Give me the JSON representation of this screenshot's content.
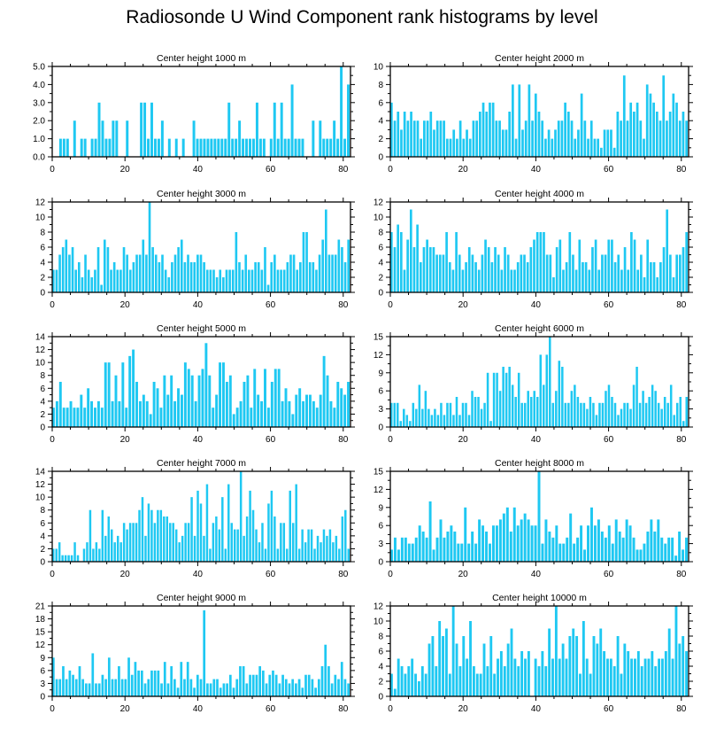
{
  "title": "Radiosonde U Wind Component rank histograms by level",
  "colors": {
    "bar": "#1EC8F2",
    "axis": "#000000"
  },
  "chart_data": [
    {
      "type": "bar",
      "title": "Center height 1000 m",
      "xlim": [
        0,
        82
      ],
      "ylim": [
        0,
        5
      ],
      "xticks": [
        0,
        20,
        40,
        60,
        80
      ],
      "yticks": [
        0,
        1,
        2,
        3,
        4,
        5
      ],
      "ytick_labels": [
        "0.0",
        "1.0",
        "2.0",
        "3.0",
        "4.0",
        "5.0"
      ],
      "values": [
        0,
        0,
        1,
        1,
        1,
        0,
        2,
        0,
        1,
        1,
        0,
        1,
        1,
        3,
        2,
        1,
        1,
        2,
        2,
        0,
        0,
        2,
        0,
        0,
        0,
        3,
        3,
        1,
        3,
        1,
        1,
        2,
        0,
        1,
        0,
        1,
        0,
        1,
        0,
        0,
        2,
        1,
        1,
        1,
        1,
        1,
        1,
        1,
        1,
        1,
        3,
        1,
        1,
        2,
        1,
        1,
        1,
        1,
        3,
        1,
        1,
        0,
        1,
        3,
        1,
        3,
        1,
        1,
        4,
        1,
        1,
        1,
        0,
        0,
        2,
        0,
        2,
        1,
        1,
        1,
        2,
        1,
        5,
        1,
        4
      ]
    },
    {
      "type": "bar",
      "title": "Center height 2000 m",
      "xlim": [
        0,
        82
      ],
      "ylim": [
        0,
        10
      ],
      "xticks": [
        0,
        20,
        40,
        60,
        80
      ],
      "yticks": [
        0,
        2,
        4,
        6,
        8,
        10
      ],
      "ytick_labels": [
        "0",
        "2",
        "4",
        "6",
        "8",
        "10"
      ],
      "values": [
        6,
        4,
        5,
        3,
        5,
        4,
        5,
        4,
        4,
        2,
        4,
        4,
        5,
        3,
        4,
        4,
        4,
        2,
        2,
        3,
        2,
        4,
        2,
        3,
        2,
        4,
        4,
        5,
        6,
        5,
        6,
        6,
        4,
        4,
        3,
        3,
        5,
        8,
        2,
        8,
        3,
        4,
        8,
        4,
        7,
        5,
        4,
        2,
        3,
        2,
        3,
        4,
        4,
        6,
        5,
        4,
        2,
        3,
        7,
        4,
        2,
        4,
        2,
        2,
        1,
        3,
        3,
        3,
        1,
        5,
        4,
        9,
        4,
        6,
        5,
        6,
        4,
        2,
        8,
        7,
        6,
        5,
        4,
        9,
        4,
        5,
        7,
        6,
        4,
        5,
        4
      ]
    },
    {
      "type": "bar",
      "title": "Center height 3000 m",
      "xlim": [
        0,
        82
      ],
      "ylim": [
        0,
        12
      ],
      "xticks": [
        0,
        20,
        40,
        60,
        80
      ],
      "yticks": [
        0,
        2,
        4,
        6,
        8,
        10,
        12
      ],
      "ytick_labels": [
        "0",
        "2",
        "4",
        "6",
        "8",
        "10",
        "12"
      ],
      "values": [
        3,
        3,
        5,
        6,
        7,
        5,
        6,
        3,
        4,
        2,
        5,
        3,
        2,
        3,
        6,
        1,
        7,
        6,
        3,
        4,
        3,
        3,
        6,
        5,
        3,
        4,
        5,
        5,
        7,
        5,
        12,
        6,
        5,
        4,
        5,
        3,
        2,
        4,
        5,
        6,
        7,
        4,
        5,
        4,
        4,
        5,
        5,
        4,
        3,
        3,
        3,
        2,
        3,
        2,
        3,
        3,
        3,
        8,
        4,
        3,
        5,
        3,
        3,
        4,
        4,
        3,
        6,
        1,
        4,
        5,
        3,
        3,
        3,
        4,
        5,
        5,
        3,
        4,
        8,
        8,
        4,
        4,
        3,
        5,
        7,
        11,
        5,
        5,
        5,
        7,
        6,
        4,
        7
      ]
    },
    {
      "type": "bar",
      "title": "Center height 4000 m",
      "xlim": [
        0,
        82
      ],
      "ylim": [
        0,
        12
      ],
      "xticks": [
        0,
        20,
        40,
        60,
        80
      ],
      "yticks": [
        0,
        2,
        4,
        6,
        8,
        10,
        12
      ],
      "ytick_labels": [
        "0",
        "2",
        "4",
        "6",
        "8",
        "10",
        "12"
      ],
      "values": [
        8,
        6,
        9,
        8,
        3,
        7,
        11,
        6,
        9,
        4,
        6,
        7,
        6,
        6,
        5,
        5,
        5,
        8,
        4,
        3,
        8,
        5,
        3,
        4,
        6,
        5,
        4,
        3,
        5,
        7,
        6,
        4,
        6,
        5,
        3,
        6,
        5,
        3,
        3,
        4,
        5,
        5,
        4,
        6,
        7,
        8,
        8,
        8,
        5,
        5,
        2,
        6,
        7,
        3,
        4,
        8,
        5,
        3,
        7,
        4,
        4,
        3,
        6,
        7,
        3,
        5,
        5,
        7,
        7,
        4,
        5,
        3,
        6,
        3,
        8,
        7,
        3,
        5,
        2,
        7,
        4,
        4,
        2,
        4,
        6,
        11,
        5,
        2,
        5,
        5,
        6,
        8
      ]
    },
    {
      "type": "bar",
      "title": "Center height 5000 m",
      "xlim": [
        0,
        82
      ],
      "ylim": [
        0,
        14
      ],
      "xticks": [
        0,
        20,
        40,
        60,
        80
      ],
      "yticks": [
        0,
        2,
        4,
        6,
        8,
        10,
        12,
        14
      ],
      "ytick_labels": [
        "0",
        "2",
        "4",
        "6",
        "8",
        "10",
        "12",
        "14"
      ],
      "values": [
        3,
        4,
        7,
        3,
        3,
        4,
        3,
        3,
        5,
        3,
        6,
        4,
        3,
        4,
        3,
        10,
        10,
        4,
        8,
        4,
        10,
        3,
        11,
        12,
        7,
        4,
        5,
        4,
        2,
        7,
        6,
        3,
        8,
        5,
        8,
        4,
        6,
        5,
        10,
        9,
        8,
        4,
        8,
        9,
        13,
        8,
        3,
        5,
        10,
        10,
        7,
        8,
        2,
        3,
        4,
        7,
        8,
        3,
        9,
        5,
        4,
        9,
        3,
        7,
        9,
        9,
        4,
        6,
        4,
        2,
        5,
        6,
        4,
        5,
        5,
        4,
        3,
        5,
        11,
        8,
        4,
        3,
        7,
        6,
        5,
        7
      ]
    },
    {
      "type": "bar",
      "title": "Center height 6000 m",
      "xlim": [
        0,
        82
      ],
      "ylim": [
        0,
        15
      ],
      "xticks": [
        0,
        20,
        40,
        60,
        80
      ],
      "yticks": [
        0,
        3,
        6,
        9,
        12,
        15
      ],
      "ytick_labels": [
        "0",
        "3",
        "6",
        "9",
        "12",
        "15"
      ],
      "values": [
        4,
        4,
        4,
        1,
        3,
        2,
        1,
        4,
        3,
        7,
        3,
        6,
        3,
        2,
        3,
        2,
        4,
        2,
        4,
        4,
        2,
        5,
        2,
        4,
        4,
        2,
        6,
        5,
        5,
        3,
        4,
        9,
        1,
        9,
        9,
        6,
        10,
        9,
        10,
        7,
        5,
        9,
        4,
        4,
        6,
        5,
        6,
        5,
        12,
        7,
        12,
        15,
        4,
        6,
        11,
        10,
        4,
        4,
        6,
        7,
        5,
        4,
        4,
        3,
        5,
        4,
        2,
        4,
        4,
        6,
        7,
        5,
        4,
        2,
        3,
        4,
        4,
        3,
        7,
        10,
        4,
        6,
        4,
        5,
        7,
        6,
        4,
        3,
        5,
        4,
        7,
        2,
        4,
        5,
        1,
        5
      ]
    },
    {
      "type": "bar",
      "title": "Center height 7000 m",
      "xlim": [
        0,
        82
      ],
      "ylim": [
        0,
        14
      ],
      "xticks": [
        0,
        20,
        40,
        60,
        80
      ],
      "yticks": [
        0,
        2,
        4,
        6,
        8,
        10,
        12,
        14
      ],
      "ytick_labels": [
        "0",
        "2",
        "4",
        "6",
        "8",
        "10",
        "12",
        "14"
      ],
      "values": [
        2,
        2,
        3,
        1,
        1,
        1,
        1,
        3,
        1,
        0,
        2,
        3,
        8,
        2,
        3,
        2,
        8,
        4,
        7,
        5,
        3,
        4,
        3,
        6,
        5,
        6,
        6,
        6,
        8,
        10,
        4,
        9,
        8,
        6,
        8,
        8,
        7,
        7,
        6,
        6,
        5,
        3,
        4,
        6,
        6,
        10,
        4,
        11,
        9,
        4,
        12,
        2,
        6,
        7,
        5,
        10,
        2,
        12,
        6,
        5,
        5,
        14,
        4,
        7,
        11,
        8,
        5,
        3,
        6,
        2,
        9,
        11,
        7,
        2,
        6,
        6,
        2,
        11,
        6,
        12,
        2,
        5,
        3,
        5,
        5,
        2,
        4,
        3,
        5,
        4,
        5,
        3,
        4,
        2,
        7,
        8,
        2
      ]
    },
    {
      "type": "bar",
      "title": "Center height 8000 m",
      "xlim": [
        0,
        82
      ],
      "ylim": [
        0,
        15
      ],
      "xticks": [
        0,
        20,
        40,
        60,
        80
      ],
      "yticks": [
        0,
        3,
        6,
        9,
        12,
        15
      ],
      "ytick_labels": [
        "0",
        "3",
        "6",
        "9",
        "12",
        "15"
      ],
      "values": [
        2,
        4,
        2,
        4,
        4,
        3,
        3,
        4,
        6,
        5,
        4,
        10,
        2,
        4,
        7,
        4,
        5,
        6,
        5,
        3,
        3,
        9,
        3,
        5,
        3,
        7,
        6,
        5,
        3,
        6,
        6,
        7,
        8,
        9,
        5,
        9,
        6,
        7,
        8,
        7,
        6,
        6,
        15,
        3,
        7,
        5,
        4,
        6,
        3,
        3,
        4,
        8,
        3,
        4,
        6,
        2,
        6,
        9,
        6,
        7,
        5,
        4,
        6,
        3,
        7,
        5,
        4,
        7,
        6,
        4,
        2,
        2,
        3,
        5,
        7,
        5,
        7,
        4,
        3,
        4,
        4,
        1,
        5,
        2,
        4
      ]
    },
    {
      "type": "bar",
      "title": "Center height 9000 m",
      "xlim": [
        0,
        82
      ],
      "ylim": [
        0,
        21
      ],
      "xticks": [
        0,
        20,
        40,
        60,
        80
      ],
      "yticks": [
        0,
        3,
        6,
        9,
        12,
        15,
        18,
        21
      ],
      "ytick_labels": [
        "0",
        "3",
        "6",
        "9",
        "12",
        "15",
        "18",
        "21"
      ],
      "values": [
        9,
        4,
        4,
        7,
        4,
        6,
        5,
        4,
        7,
        4,
        3,
        3,
        10,
        3,
        3,
        5,
        4,
        9,
        4,
        4,
        7,
        4,
        4,
        9,
        5,
        8,
        6,
        6,
        3,
        4,
        6,
        6,
        6,
        3,
        8,
        3,
        7,
        4,
        2,
        8,
        4,
        8,
        4,
        2,
        5,
        4,
        20,
        3,
        3,
        4,
        4,
        2,
        3,
        3,
        5,
        2,
        4,
        7,
        7,
        3,
        5,
        5,
        5,
        7,
        6,
        3,
        5,
        6,
        5,
        3,
        5,
        4,
        3,
        4,
        3,
        4,
        2,
        5,
        5,
        4,
        2,
        4,
        7,
        12,
        7,
        3,
        5,
        4,
        8,
        4,
        3
      ]
    },
    {
      "type": "bar",
      "title": "Center height 10000 m",
      "xlim": [
        0,
        82
      ],
      "ylim": [
        0,
        12
      ],
      "xticks": [
        0,
        20,
        40,
        60,
        80
      ],
      "yticks": [
        0,
        2,
        4,
        6,
        8,
        10,
        12
      ],
      "ytick_labels": [
        "0",
        "2",
        "4",
        "6",
        "8",
        "10",
        "12"
      ],
      "values": [
        3,
        1,
        5,
        4,
        3,
        4,
        5,
        3,
        2,
        4,
        3,
        7,
        8,
        4,
        10,
        8,
        9,
        3,
        12,
        7,
        4,
        8,
        5,
        10,
        4,
        3,
        3,
        7,
        4,
        8,
        3,
        5,
        6,
        4,
        7,
        9,
        5,
        4,
        6,
        5,
        6,
        0,
        5,
        4,
        6,
        4,
        9,
        5,
        12,
        5,
        7,
        5,
        8,
        9,
        8,
        3,
        10,
        5,
        3,
        8,
        7,
        9,
        6,
        5,
        5,
        4,
        8,
        3,
        7,
        6,
        5,
        5,
        6,
        4,
        5,
        5,
        6,
        4,
        5,
        5,
        6,
        9,
        5,
        12,
        7,
        8,
        6
      ]
    }
  ]
}
